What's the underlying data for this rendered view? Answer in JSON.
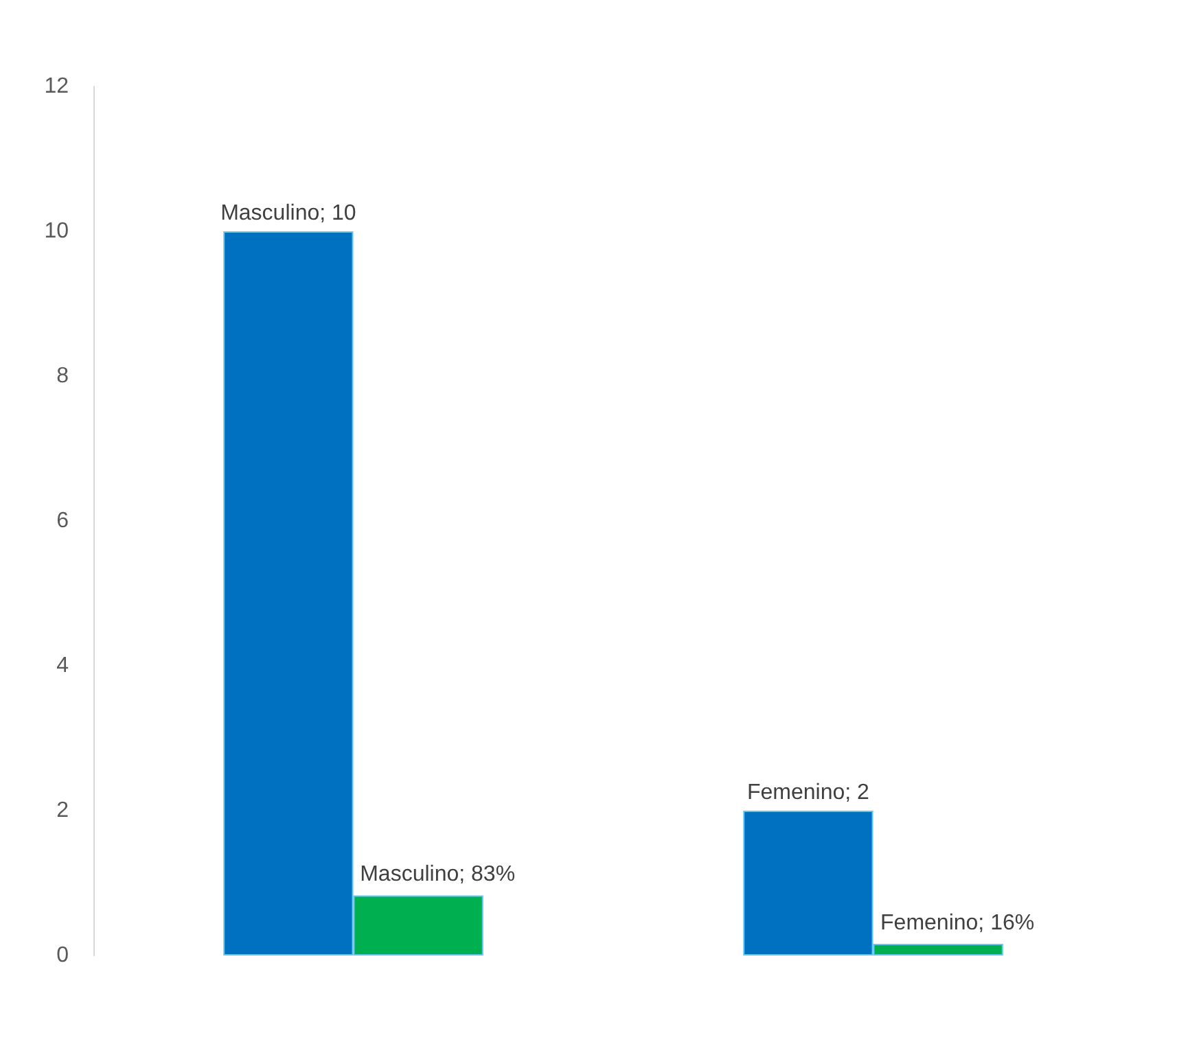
{
  "chart_data": {
    "type": "bar",
    "categories": [
      null,
      null
    ],
    "series": [
      {
        "color": "#0070c0",
        "values": [
          10,
          2
        ],
        "value_labels": [
          "Masculino; 10",
          "Femenino; 2"
        ]
      },
      {
        "color": "#00b050",
        "values": [
          0.83,
          0.16
        ],
        "value_labels": [
          "Masculino; 83%",
          "Femenino; 16%"
        ]
      }
    ],
    "ylim": [
      0,
      12
    ],
    "yticks": [
      0,
      2,
      4,
      6,
      8,
      10,
      12
    ],
    "grid": false
  }
}
